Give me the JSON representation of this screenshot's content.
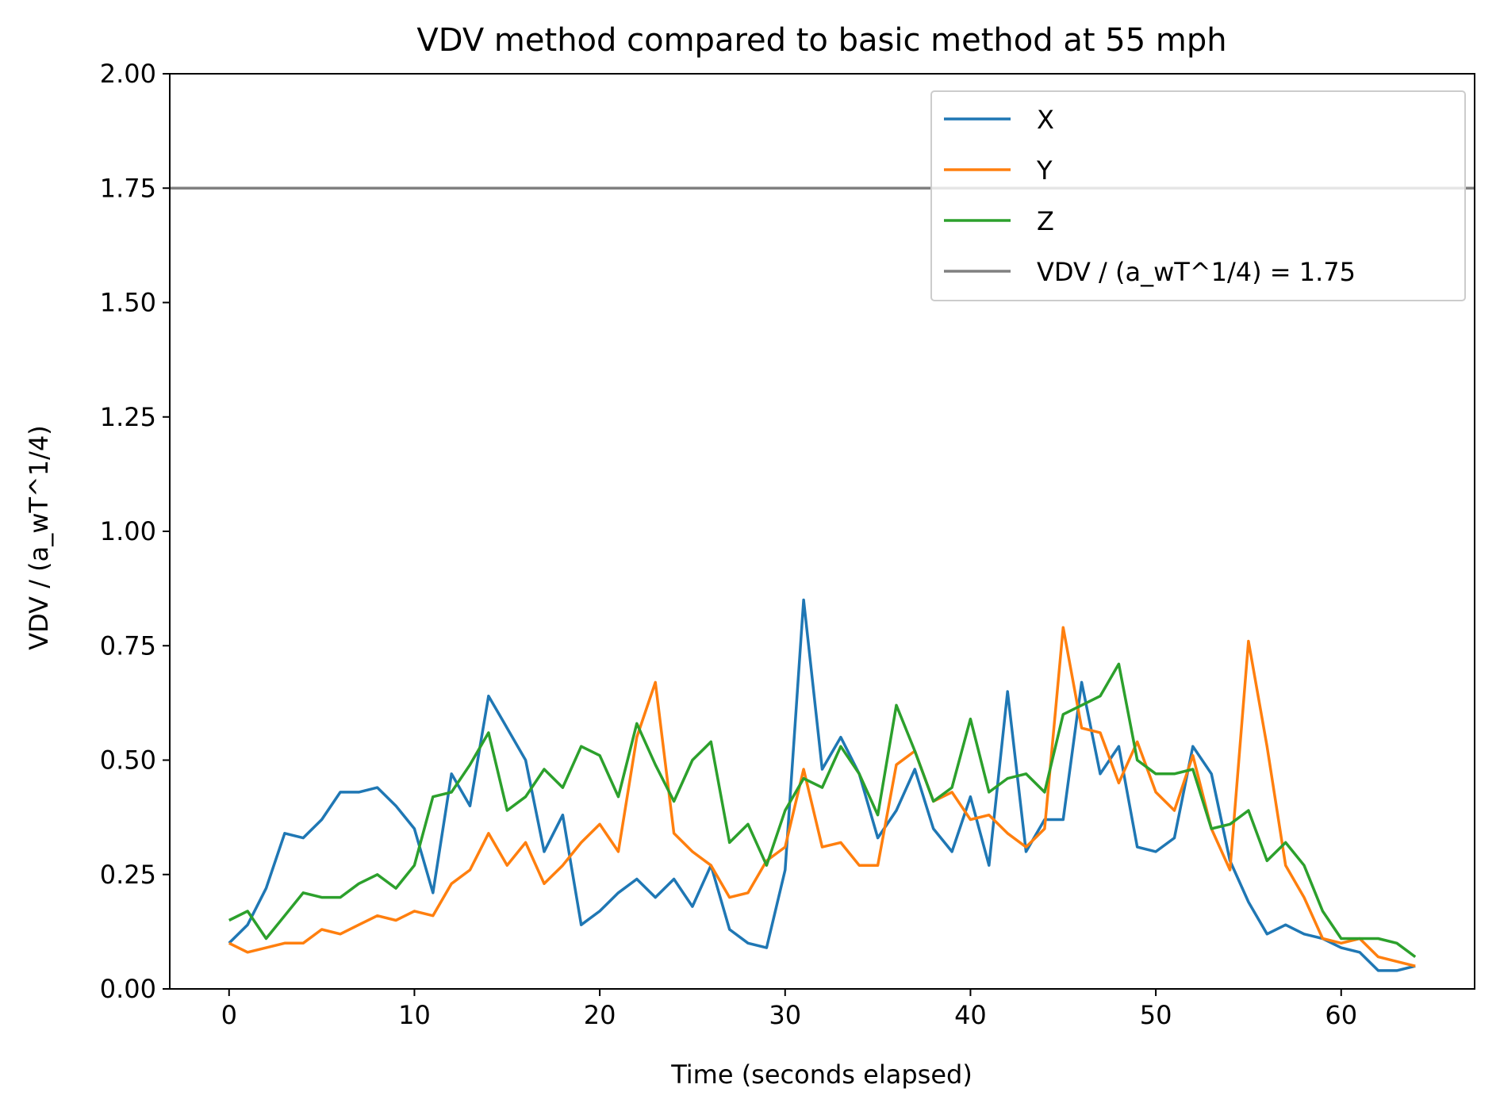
{
  "chart_data": {
    "type": "line",
    "title": "VDV method compared to basic method at 55 mph",
    "xlabel": "Time (seconds elapsed)",
    "ylabel": "VDV / (a_wT^1/4)",
    "xlim": [
      -3.2,
      67.2
    ],
    "ylim": [
      0,
      2.0
    ],
    "xticks": [
      0,
      10,
      20,
      30,
      40,
      50,
      60
    ],
    "xtick_labels": [
      "0",
      "10",
      "20",
      "30",
      "40",
      "50",
      "60"
    ],
    "yticks": [
      0,
      0.25,
      0.5,
      0.75,
      1.0,
      1.25,
      1.5,
      1.75,
      2.0
    ],
    "ytick_labels": [
      "0.00",
      "0.25",
      "0.50",
      "0.75",
      "1.00",
      "1.25",
      "1.50",
      "1.75",
      "2.00"
    ],
    "grid": false,
    "legend_position": "top-right",
    "x": [
      0,
      1,
      2,
      3,
      4,
      5,
      6,
      7,
      8,
      9,
      10,
      11,
      12,
      13,
      14,
      15,
      16,
      17,
      18,
      19,
      20,
      21,
      22,
      23,
      24,
      25,
      26,
      27,
      28,
      29,
      30,
      31,
      32,
      33,
      34,
      35,
      36,
      37,
      38,
      39,
      40,
      41,
      42,
      43,
      44,
      45,
      46,
      47,
      48,
      49,
      50,
      51,
      52,
      53,
      54,
      55,
      56,
      57,
      58,
      59,
      60,
      61,
      62,
      63,
      64
    ],
    "series": [
      {
        "name": "X",
        "color": "#1f77b4",
        "values": [
          0.1,
          0.14,
          0.22,
          0.34,
          0.33,
          0.37,
          0.43,
          0.43,
          0.44,
          0.4,
          0.35,
          0.21,
          0.47,
          0.4,
          0.64,
          0.57,
          0.5,
          0.3,
          0.38,
          0.14,
          0.17,
          0.21,
          0.24,
          0.2,
          0.24,
          0.18,
          0.27,
          0.13,
          0.1,
          0.09,
          0.26,
          0.85,
          0.48,
          0.55,
          0.47,
          0.33,
          0.39,
          0.48,
          0.35,
          0.3,
          0.42,
          0.27,
          0.65,
          0.3,
          0.37,
          0.37,
          0.67,
          0.47,
          0.53,
          0.31,
          0.3,
          0.33,
          0.53,
          0.47,
          0.28,
          0.19,
          0.12,
          0.14,
          0.12,
          0.11,
          0.09,
          0.08,
          0.04,
          0.04,
          0.05
        ]
      },
      {
        "name": "Y",
        "color": "#ff7f0e",
        "values": [
          0.1,
          0.08,
          0.09,
          0.1,
          0.1,
          0.13,
          0.12,
          0.14,
          0.16,
          0.15,
          0.17,
          0.16,
          0.23,
          0.26,
          0.34,
          0.27,
          0.32,
          0.23,
          0.27,
          0.32,
          0.36,
          0.3,
          0.55,
          0.67,
          0.34,
          0.3,
          0.27,
          0.2,
          0.21,
          0.28,
          0.31,
          0.48,
          0.31,
          0.32,
          0.27,
          0.27,
          0.49,
          0.52,
          0.41,
          0.43,
          0.37,
          0.38,
          0.34,
          0.31,
          0.35,
          0.79,
          0.57,
          0.56,
          0.45,
          0.54,
          0.43,
          0.39,
          0.51,
          0.35,
          0.26,
          0.76,
          0.53,
          0.27,
          0.2,
          0.11,
          0.1,
          0.11,
          0.07,
          0.06,
          0.05
        ]
      },
      {
        "name": "Z",
        "color": "#2ca02c",
        "values": [
          0.15,
          0.17,
          0.11,
          0.16,
          0.21,
          0.2,
          0.2,
          0.23,
          0.25,
          0.22,
          0.27,
          0.42,
          0.43,
          0.49,
          0.56,
          0.39,
          0.42,
          0.48,
          0.44,
          0.53,
          0.51,
          0.42,
          0.58,
          0.49,
          0.41,
          0.5,
          0.54,
          0.32,
          0.36,
          0.27,
          0.39,
          0.46,
          0.44,
          0.53,
          0.47,
          0.38,
          0.62,
          0.52,
          0.41,
          0.44,
          0.59,
          0.43,
          0.46,
          0.47,
          0.43,
          0.6,
          0.62,
          0.64,
          0.71,
          0.5,
          0.47,
          0.47,
          0.48,
          0.35,
          0.36,
          0.39,
          0.28,
          0.32,
          0.27,
          0.17,
          0.11,
          0.11,
          0.11,
          0.1,
          0.07
        ]
      }
    ],
    "reference_line": {
      "name": "VDV / (a_wT^1/4) = 1.75",
      "y": 1.75,
      "color": "#808080"
    }
  }
}
